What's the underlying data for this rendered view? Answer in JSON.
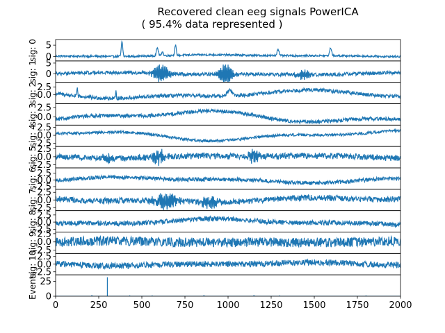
{
  "chart_data": {
    "type": "line",
    "title": "Recovered clean eeg signals PowerICA",
    "subtitle": "( 95.4% data represented )",
    "xlim": [
      0,
      2000
    ],
    "x_ticks": [
      "0",
      "250",
      "500",
      "750",
      "1000",
      "1250",
      "1500",
      "1750",
      "2000"
    ],
    "line_color": "#1f77b4",
    "grid": false,
    "panels": [
      {
        "label": "sig: 0",
        "ylim": [
          -2,
          7.5
        ],
        "yticks": [
          "0",
          "5"
        ],
        "baseline": 0.3,
        "noise": 0.35,
        "drift": 0.3,
        "peaks": [
          [
            385,
            6.5,
            6
          ],
          [
            590,
            3.5,
            8
          ],
          [
            620,
            2.0,
            6
          ],
          [
            695,
            4.5,
            6
          ],
          [
            1290,
            3.0,
            8
          ],
          [
            1595,
            3.5,
            8
          ]
        ]
      },
      {
        "label": "sig: 1",
        "ylim": [
          -4,
          6
        ],
        "yticks": [
          "0",
          "5"
        ],
        "baseline": 0.0,
        "noise": 0.7,
        "drift": 0.4,
        "bursts": [
          [
            610,
            50,
            4.0
          ],
          [
            990,
            40,
            5.0
          ],
          [
            1440,
            40,
            2.0
          ]
        ]
      },
      {
        "label": "sig: 2",
        "ylim": [
          -3,
          4
        ],
        "yticks": [
          "0.0",
          "2.5"
        ],
        "baseline": 0.0,
        "noise": 0.5,
        "drift": 1.0,
        "peaks": [
          [
            125,
            2.8,
            3
          ],
          [
            350,
            2.0,
            3
          ],
          [
            1010,
            1.8,
            20
          ]
        ]
      },
      {
        "label": "sig: 3",
        "ylim": [
          -2.2,
          3.5
        ],
        "yticks": [
          "0.0",
          "2.5"
        ],
        "baseline": 0.0,
        "noise": 0.4,
        "drift": 1.2
      },
      {
        "label": "sig: 4",
        "ylim": [
          -3.5,
          3.2
        ],
        "yticks": [
          "0.0",
          "2.5"
        ],
        "extra_ticks": [
          "-2.5"
        ],
        "baseline": 0.0,
        "noise": 0.35,
        "drift": 1.2
      },
      {
        "label": "sig: 5",
        "ylim": [
          -3.5,
          3.2
        ],
        "yticks": [
          "0.0",
          "2.5"
        ],
        "extra_ticks": [
          "-2.5"
        ],
        "baseline": 0.0,
        "noise": 0.8,
        "drift": 0.3,
        "bursts": [
          [
            310,
            30,
            2.0
          ],
          [
            600,
            40,
            2.0
          ],
          [
            1150,
            30,
            2.0
          ]
        ]
      },
      {
        "label": "sig: 6",
        "ylim": [
          -3.5,
          4.5
        ],
        "yticks": [
          "0.0",
          "2.5"
        ],
        "extra_ticks": [
          "-2.5"
        ],
        "baseline": 0.0,
        "noise": 0.6,
        "drift": 0.8
      },
      {
        "label": "sig: 7",
        "ylim": [
          -3.5,
          3.5
        ],
        "yticks": [
          "0.0",
          "2.5"
        ],
        "extra_ticks": [
          "-2.5"
        ],
        "baseline": 0.0,
        "noise": 0.8,
        "drift": 0.6,
        "bursts": [
          [
            640,
            70,
            2.5
          ],
          [
            900,
            60,
            1.5
          ]
        ]
      },
      {
        "label": "sig: 8",
        "ylim": [
          -3.5,
          4.0
        ],
        "yticks": [
          "0.0",
          "2.5"
        ],
        "extra_ticks": [
          "-2.5"
        ],
        "baseline": 0.0,
        "noise": 0.7,
        "drift": 0.8
      },
      {
        "label": "sig: 9",
        "ylim": [
          -3.5,
          3.0
        ],
        "yticks": [
          "0.0",
          "2.5"
        ],
        "extra_ticks": [
          "-2.5"
        ],
        "baseline": 0.0,
        "noise": 1.2,
        "drift": 0.2
      },
      {
        "label": "sig: 10",
        "ylim": [
          -3.5,
          3.5
        ],
        "yticks": [
          "0.0",
          "2.5"
        ],
        "extra_ticks": [
          "-2.5"
        ],
        "baseline": 0.0,
        "noise": 0.8,
        "drift": 0.4
      },
      {
        "label": "Events",
        "ylim": [
          0,
          36
        ],
        "yticks": [
          "0",
          "25"
        ],
        "baseline": 0.0,
        "noise": 0.0,
        "drift": 0.0,
        "events": [
          [
            210,
            2
          ],
          [
            300,
            32
          ],
          [
            430,
            1.5
          ],
          [
            560,
            1.5
          ],
          [
            860,
            2
          ],
          [
            1150,
            2
          ],
          [
            1300,
            1.5
          ],
          [
            1800,
            1.5
          ]
        ]
      }
    ]
  }
}
